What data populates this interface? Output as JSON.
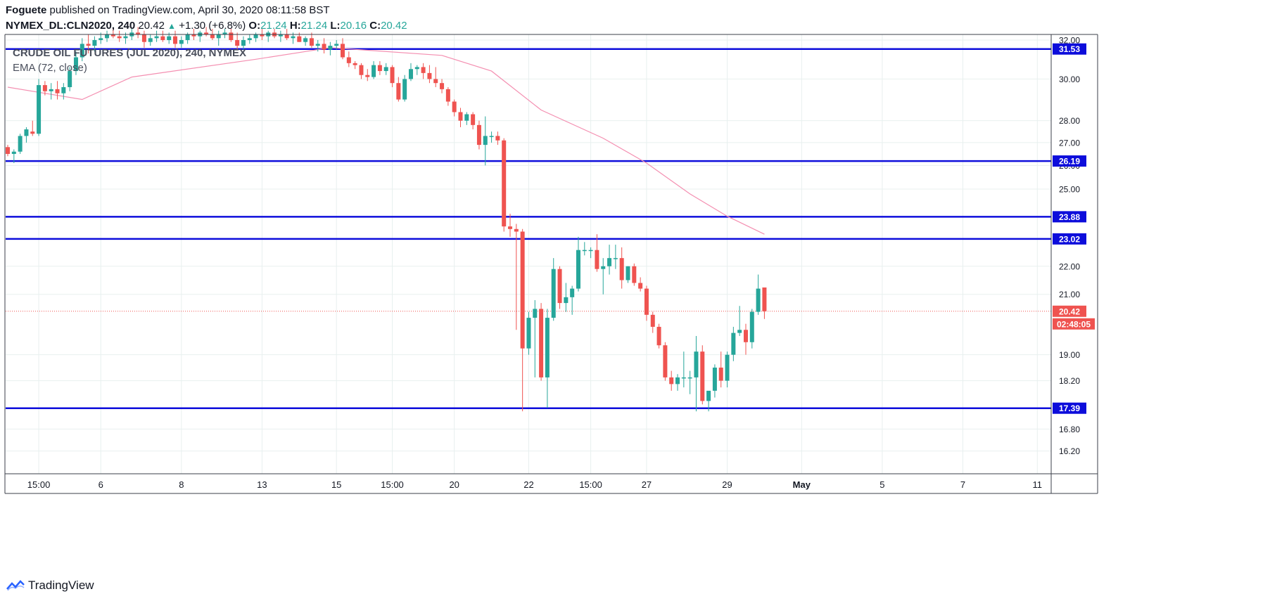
{
  "header": {
    "publisher": "Foguete",
    "published_text": "published on TradingView.com, April 30, 2020 08:11:58 BST",
    "symbol": "NYMEX_DL:CLN2020, 240",
    "last_price": "20.42",
    "change_arrow": "▲",
    "change": "+1.30 (+6.8%)",
    "open_label": "O:",
    "open": "21.24",
    "high_label": "H:",
    "high": "21.24",
    "low_label": "L:",
    "low": "20.16",
    "close_label": "C:",
    "close": "20.42"
  },
  "legend": {
    "instrument": "CRUDE OIL FUTURES (JUL 2020), 240, NYMEX",
    "indicator": "EMA (72, close)"
  },
  "footer": {
    "brand": "TradingView"
  },
  "colors": {
    "up": "#26a69a",
    "down": "#ef5350",
    "ema": "#f48fb1",
    "level_line": "#0d0ddb",
    "price_line": "#ef5350",
    "grid": "#e8f0ef"
  },
  "chart_data": {
    "type": "candlestick",
    "y_scale": "log",
    "ylim": [
      15.6,
      32.3
    ],
    "y_ticks": [
      "32.00",
      "30.00",
      "28.00",
      "27.00",
      "26.00",
      "25.00",
      "22.00",
      "21.00",
      "19.00",
      "18.20",
      "16.80",
      "16.20"
    ],
    "x_ticks": [
      {
        "bar": 5,
        "label": "15:00"
      },
      {
        "bar": 15,
        "label": "6"
      },
      {
        "bar": 28,
        "label": "8"
      },
      {
        "bar": 41,
        "label": "13"
      },
      {
        "bar": 53,
        "label": "15"
      },
      {
        "bar": 62,
        "label": "15:00"
      },
      {
        "bar": 72,
        "label": "20"
      },
      {
        "bar": 84,
        "label": "22"
      },
      {
        "bar": 94,
        "label": "15:00"
      },
      {
        "bar": 103,
        "label": "27"
      },
      {
        "bar": 116,
        "label": "29"
      },
      {
        "bar": 128,
        "label": "May"
      },
      {
        "bar": 141,
        "label": "5"
      },
      {
        "bar": 154,
        "label": "7"
      },
      {
        "bar": 166,
        "label": "11"
      }
    ],
    "horizontal_levels": [
      31.53,
      26.19,
      23.88,
      23.02,
      17.39
    ],
    "level_labels": [
      "31.53",
      "26.19",
      "23.88",
      "23.02",
      "17.39"
    ],
    "current_price": 20.42,
    "current_price_label": "20.42",
    "countdown": "02:48:05",
    "ohlc": [
      [
        26.8,
        26.9,
        26.4,
        26.5
      ],
      [
        26.5,
        26.7,
        26.1,
        26.6
      ],
      [
        26.6,
        27.4,
        26.5,
        27.3
      ],
      [
        27.3,
        27.7,
        27.0,
        27.6
      ],
      [
        27.5,
        28.0,
        27.3,
        27.4
      ],
      [
        27.4,
        30.0,
        27.3,
        29.7
      ],
      [
        29.7,
        29.9,
        29.2,
        29.4
      ],
      [
        29.4,
        29.8,
        29.0,
        29.5
      ],
      [
        29.5,
        29.9,
        29.0,
        29.3
      ],
      [
        29.3,
        29.8,
        29.0,
        29.6
      ],
      [
        29.6,
        30.6,
        29.4,
        30.4
      ],
      [
        30.4,
        31.4,
        30.2,
        31.1
      ],
      [
        31.1,
        32.1,
        30.9,
        31.8
      ],
      [
        31.8,
        32.3,
        31.3,
        31.7
      ],
      [
        31.7,
        32.2,
        31.4,
        32.0
      ],
      [
        32.0,
        32.4,
        31.8,
        32.1
      ],
      [
        32.1,
        32.5,
        31.9,
        32.3
      ],
      [
        32.3,
        32.6,
        32.1,
        32.2
      ],
      [
        32.2,
        32.5,
        31.9,
        32.1
      ],
      [
        32.1,
        32.4,
        31.8,
        32.2
      ],
      [
        32.2,
        32.6,
        32.0,
        32.4
      ],
      [
        32.4,
        32.7,
        32.1,
        32.3
      ],
      [
        32.3,
        32.5,
        31.6,
        31.9
      ],
      [
        31.9,
        32.3,
        31.7,
        32.1
      ],
      [
        32.1,
        32.5,
        31.9,
        32.2
      ],
      [
        32.2,
        32.5,
        31.9,
        32.0
      ],
      [
        32.0,
        32.4,
        31.8,
        32.2
      ],
      [
        32.2,
        32.5,
        31.6,
        31.8
      ],
      [
        31.8,
        32.2,
        31.6,
        32.0
      ],
      [
        32.0,
        32.4,
        31.8,
        32.3
      ],
      [
        32.3,
        32.6,
        32.0,
        32.2
      ],
      [
        32.2,
        32.5,
        31.9,
        32.4
      ],
      [
        32.4,
        32.7,
        32.2,
        32.3
      ],
      [
        32.3,
        32.6,
        32.0,
        32.1
      ],
      [
        32.1,
        32.5,
        31.7,
        32.3
      ],
      [
        32.3,
        32.6,
        32.1,
        32.4
      ],
      [
        32.4,
        32.6,
        31.9,
        32.0
      ],
      [
        32.0,
        32.4,
        31.5,
        31.7
      ],
      [
        31.7,
        32.2,
        31.5,
        32.0
      ],
      [
        32.0,
        32.3,
        31.8,
        32.1
      ],
      [
        32.1,
        32.4,
        31.9,
        32.3
      ],
      [
        32.3,
        32.6,
        32.0,
        32.2
      ],
      [
        32.2,
        32.5,
        31.9,
        32.4
      ],
      [
        32.4,
        32.6,
        32.1,
        32.2
      ],
      [
        32.2,
        32.5,
        31.9,
        32.3
      ],
      [
        32.3,
        32.6,
        32.0,
        32.1
      ],
      [
        32.1,
        32.4,
        31.8,
        32.2
      ],
      [
        32.2,
        32.4,
        31.9,
        31.9
      ],
      [
        31.9,
        32.2,
        31.7,
        32.1
      ],
      [
        32.1,
        32.4,
        31.6,
        31.7
      ],
      [
        31.7,
        32.0,
        31.4,
        31.8
      ],
      [
        31.8,
        32.1,
        31.3,
        31.5
      ],
      [
        31.5,
        31.9,
        31.2,
        31.7
      ],
      [
        31.7,
        32.0,
        31.5,
        31.8
      ],
      [
        31.8,
        32.1,
        31.0,
        31.1
      ],
      [
        31.1,
        31.4,
        30.6,
        30.8
      ],
      [
        30.8,
        30.9,
        30.5,
        30.7
      ],
      [
        30.7,
        30.8,
        30.0,
        30.2
      ],
      [
        30.2,
        30.5,
        29.9,
        30.1
      ],
      [
        30.1,
        30.9,
        30.0,
        30.7
      ],
      [
        30.7,
        30.9,
        30.2,
        30.4
      ],
      [
        30.4,
        30.8,
        30.2,
        30.6
      ],
      [
        30.6,
        30.7,
        29.6,
        29.8
      ],
      [
        29.8,
        30.1,
        28.9,
        29.0
      ],
      [
        29.0,
        30.2,
        28.9,
        30.0
      ],
      [
        30.0,
        30.8,
        29.9,
        30.5
      ],
      [
        30.5,
        30.7,
        30.2,
        30.6
      ],
      [
        30.6,
        30.8,
        30.0,
        30.3
      ],
      [
        30.3,
        30.7,
        29.8,
        30.0
      ],
      [
        30.0,
        30.6,
        29.6,
        29.8
      ],
      [
        29.8,
        30.0,
        29.3,
        29.5
      ],
      [
        29.5,
        29.6,
        28.7,
        28.9
      ],
      [
        28.9,
        29.0,
        28.2,
        28.4
      ],
      [
        28.4,
        28.6,
        27.7,
        28.0
      ],
      [
        28.0,
        28.4,
        27.8,
        28.3
      ],
      [
        28.3,
        28.4,
        27.6,
        27.8
      ],
      [
        27.8,
        28.0,
        26.7,
        26.9
      ],
      [
        26.9,
        28.2,
        26.0,
        27.3
      ],
      [
        27.3,
        27.5,
        27.0,
        27.3
      ],
      [
        27.3,
        27.5,
        26.9,
        27.1
      ],
      [
        27.1,
        27.2,
        23.3,
        23.5
      ],
      [
        23.5,
        24.0,
        23.1,
        23.4
      ],
      [
        23.4,
        23.6,
        19.8,
        23.3
      ],
      [
        23.3,
        23.4,
        17.3,
        19.2
      ],
      [
        19.2,
        20.4,
        19.0,
        20.2
      ],
      [
        20.2,
        20.8,
        18.3,
        20.5
      ],
      [
        20.5,
        20.7,
        18.2,
        18.3
      ],
      [
        18.3,
        20.5,
        17.4,
        20.2
      ],
      [
        20.2,
        22.3,
        20.1,
        21.9
      ],
      [
        21.9,
        22.0,
        20.5,
        20.7
      ],
      [
        20.7,
        21.4,
        20.4,
        20.9
      ],
      [
        20.9,
        21.3,
        20.3,
        21.2
      ],
      [
        21.2,
        23.1,
        21.1,
        22.6
      ],
      [
        22.6,
        22.9,
        22.4,
        22.6
      ],
      [
        22.6,
        22.7,
        22.3,
        22.6
      ],
      [
        22.6,
        23.2,
        21.8,
        21.9
      ],
      [
        21.9,
        22.3,
        21.0,
        22.0
      ],
      [
        22.0,
        22.8,
        21.7,
        22.3
      ],
      [
        22.3,
        22.8,
        21.9,
        22.3
      ],
      [
        22.3,
        22.7,
        21.2,
        21.5
      ],
      [
        21.5,
        22.0,
        21.4,
        22.0
      ],
      [
        22.0,
        22.1,
        21.3,
        21.4
      ],
      [
        21.4,
        21.6,
        21.1,
        21.2
      ],
      [
        21.2,
        21.3,
        20.1,
        20.3
      ],
      [
        20.3,
        20.4,
        19.7,
        19.9
      ],
      [
        19.9,
        20.0,
        19.2,
        19.3
      ],
      [
        19.3,
        19.4,
        18.2,
        18.3
      ],
      [
        18.3,
        18.5,
        17.9,
        18.1
      ],
      [
        18.1,
        18.4,
        17.9,
        18.3
      ],
      [
        18.3,
        19.1,
        18.0,
        18.3
      ],
      [
        18.3,
        18.5,
        17.8,
        18.3
      ],
      [
        18.3,
        19.6,
        17.3,
        19.1
      ],
      [
        19.1,
        19.3,
        17.5,
        17.6
      ],
      [
        17.6,
        17.8,
        17.3,
        17.9
      ],
      [
        17.9,
        18.7,
        17.7,
        18.6
      ],
      [
        18.6,
        19.1,
        18.0,
        18.2
      ],
      [
        18.2,
        19.1,
        18.0,
        19.0
      ],
      [
        19.0,
        19.9,
        18.8,
        19.7
      ],
      [
        19.7,
        20.6,
        19.6,
        19.8
      ],
      [
        19.8,
        20.0,
        19.0,
        19.4
      ],
      [
        19.4,
        20.5,
        19.2,
        20.4
      ],
      [
        20.4,
        21.7,
        20.3,
        21.2
      ],
      [
        21.24,
        21.24,
        20.16,
        20.42
      ]
    ],
    "ema_72": [
      [
        0,
        29.6
      ],
      [
        12,
        29.0
      ],
      [
        20,
        30.1
      ],
      [
        40,
        31.0
      ],
      [
        52,
        31.6
      ],
      [
        70,
        31.2
      ],
      [
        78,
        30.4
      ],
      [
        86,
        28.5
      ],
      [
        96,
        27.2
      ],
      [
        103,
        26.1
      ],
      [
        110,
        24.8
      ],
      [
        116,
        23.9
      ],
      [
        122,
        23.2
      ]
    ]
  }
}
